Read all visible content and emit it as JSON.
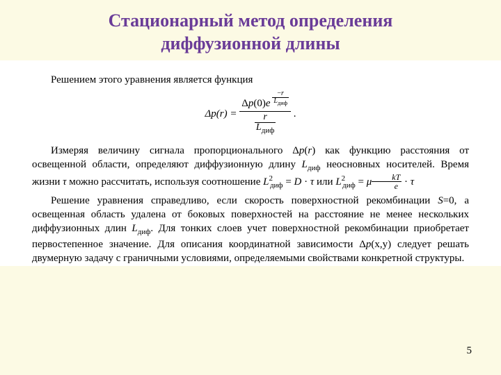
{
  "colors": {
    "slide_bg": "#fcfae4",
    "title_color": "#6a3c98",
    "body_bg": "#ffffff",
    "text_color": "#000000"
  },
  "title": {
    "line1": "Стационарный метод определения",
    "line2": "диффузионной длины",
    "fontsize": 26,
    "weight": "bold"
  },
  "body": {
    "fontsize": 15,
    "para1": "Решением этого уравнения является функция",
    "main_formula": {
      "lhs": "Δp(r) =",
      "num_prefix": "Δp(0)e",
      "exp_num": "−r",
      "exp_den": "L_диф",
      "denom_num": "r",
      "denom_den": "L_диф",
      "tail": "."
    },
    "para2": {
      "pre": "Измеряя величину сигнала пропорционального Δ",
      "sym_p_r": "p(r)",
      "mid1": " как функцию расстояния от освещенной области, определяют диффузионную длину ",
      "Ldif": "L_диф",
      "mid2": " неосновных носителей. Время жизни ",
      "tau": "τ",
      "mid3": " можно рассчитать, используя соотношение ",
      "eqA": "L²_диф = D · τ",
      "or": " или ",
      "eqB_lhs": "L²_диф = μ",
      "eqB_frac_num": "kT",
      "eqB_frac_den": "e",
      "eqB_tail": " · τ"
    },
    "para3": {
      "pre": "Решение уравнения справедливо, если скорость поверхностной рекомбинации ",
      "S0": "S=0",
      "mid1": ", а освещенная область удалена от боковых поверхностей на расстояние не менее нескольких диффузионных длин ",
      "Ldif": "L_диф",
      "mid2": ". Для тонких слоев учет поверхностной рекомбинации приобретает первостепенное значение. Для описания координатной зависимости Δ",
      "pxy": "p(x,y)",
      "tail": " следует решать двумерную задачу с граничными условиями, определяемыми свойствами конкретной структуры."
    }
  },
  "page_number": "5"
}
